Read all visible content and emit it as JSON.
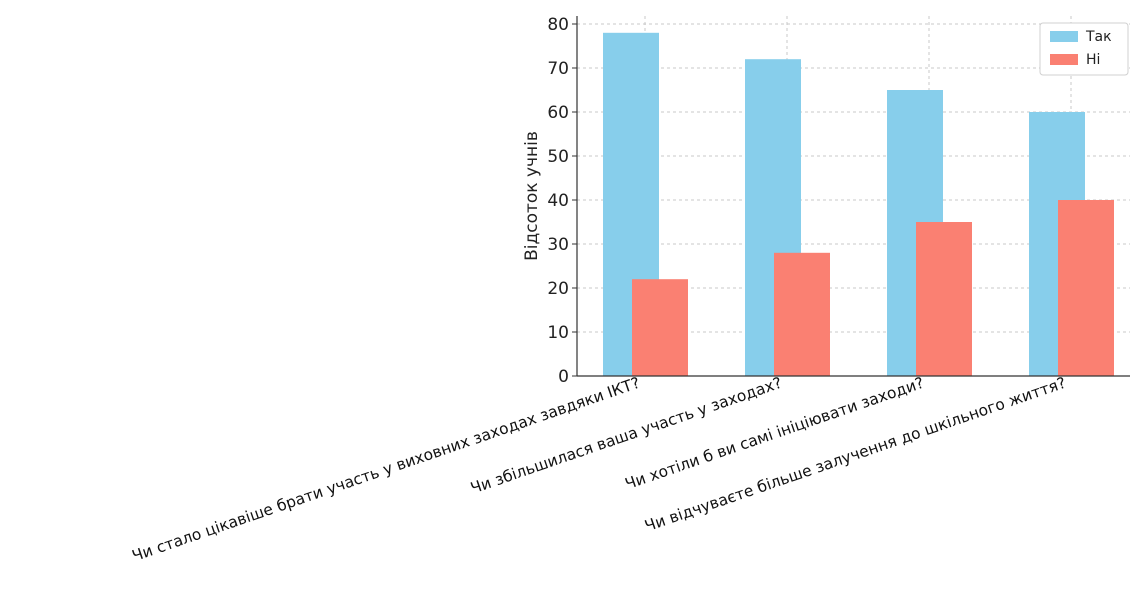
{
  "chart_data": {
    "type": "bar",
    "categories": [
      "Чи стало цікавіше брати участь у виховних заходах завдяки ІКТ?",
      "Чи збільшилася ваша участь у заходах?",
      "Чи хотіли б ви самі ініціювати заходи?",
      "Чи відчуваєте більше залучення до шкільного життя?"
    ],
    "series": [
      {
        "name": "Так",
        "values": [
          78,
          72,
          65,
          60
        ],
        "color": "#87ceeb"
      },
      {
        "name": "Ні",
        "values": [
          22,
          28,
          35,
          40
        ],
        "color": "#fa8072"
      }
    ],
    "ylabel": "Відсоток учнів",
    "ylim": [
      0,
      80
    ],
    "yticks": [
      0,
      10,
      20,
      30,
      40,
      50,
      60,
      70,
      80
    ],
    "grid": true,
    "legend": "top-right"
  }
}
